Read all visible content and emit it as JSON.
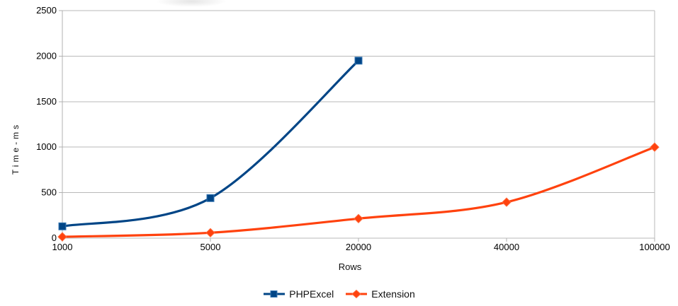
{
  "chart": {
    "background": "#ffffff",
    "grid_color": "#b9b9b9",
    "axis_color": "#b0b0b0",
    "text_color": "#000000"
  },
  "chart_data": {
    "type": "line",
    "title": "",
    "xlabel": "Rows",
    "ylabel": "Time-ms",
    "categories": [
      "1000",
      "5000",
      "20000",
      "40000",
      "100000"
    ],
    "series": [
      {
        "name": "PHPExcel",
        "color": "#004586",
        "marker": "square",
        "marker_stroke": "#3878b4",
        "values": [
          130,
          440,
          1950,
          null,
          null
        ]
      },
      {
        "name": "Extension",
        "color": "#ff420e",
        "marker": "diamond",
        "marker_stroke": "#ff6a3c",
        "values": [
          15,
          60,
          215,
          395,
          1000
        ]
      }
    ],
    "ylim": [
      0,
      2500
    ],
    "ytick_step": 500,
    "grid": "horizontal",
    "smooth": true,
    "legend_position": "bottom"
  }
}
